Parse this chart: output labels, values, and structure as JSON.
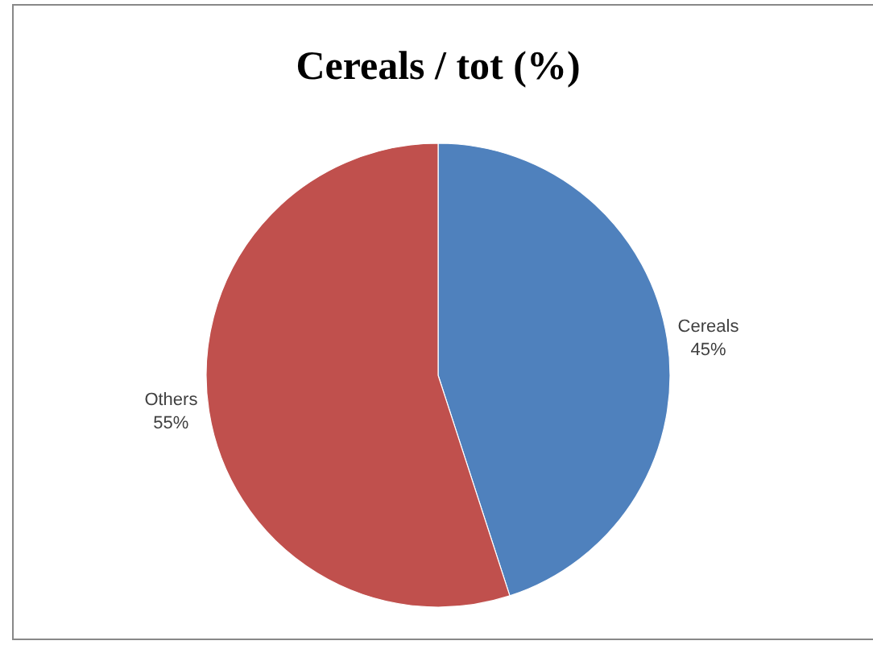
{
  "chart_data": {
    "type": "pie",
    "title": "Cereals / tot (%)",
    "categories": [
      "Cereals",
      "Others"
    ],
    "values": [
      45,
      55
    ],
    "colors": [
      "#4f81bd",
      "#c0504d"
    ],
    "value_labels": [
      "45%",
      "55%"
    ]
  }
}
